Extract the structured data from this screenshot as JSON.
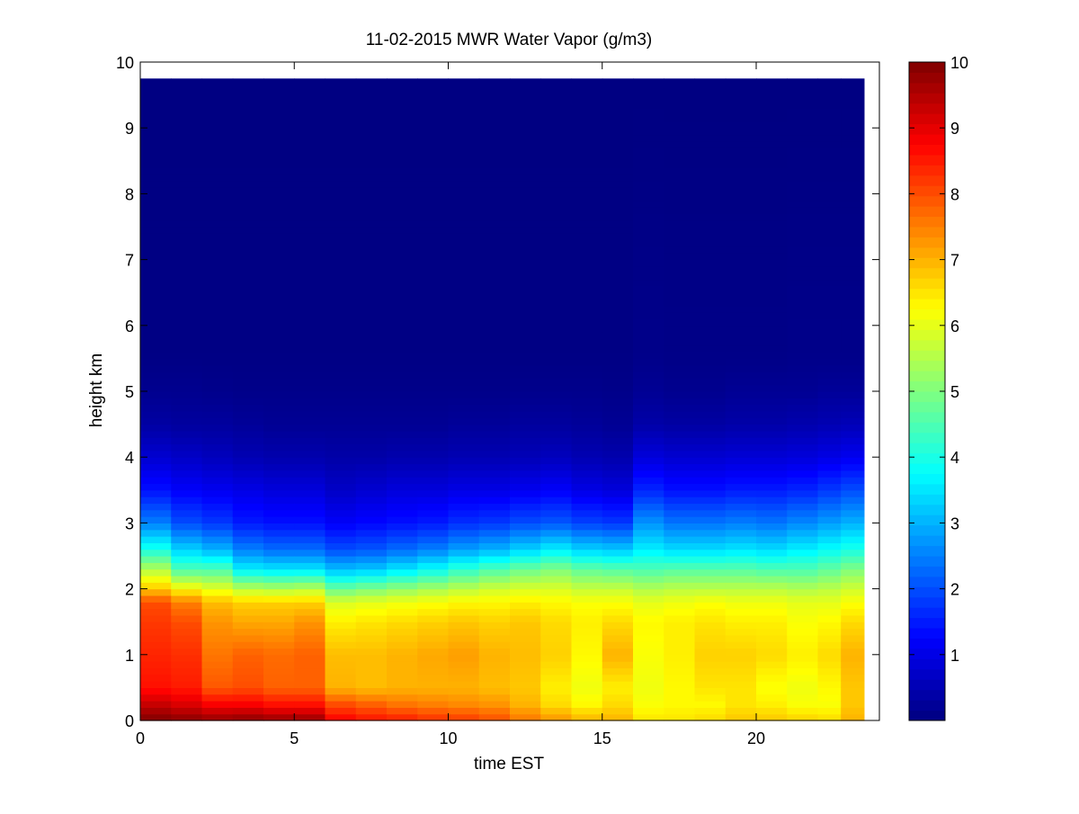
{
  "chart_data": {
    "type": "heatmap",
    "title": "11-02-2015 MWR Water Vapor (g/m3)",
    "xlabel": "time EST",
    "ylabel": "height km",
    "xlim": [
      0,
      24
    ],
    "ylim": [
      0,
      10
    ],
    "x_ticks": [
      0,
      5,
      10,
      15,
      20
    ],
    "y_ticks": [
      0,
      1,
      2,
      3,
      4,
      5,
      6,
      7,
      8,
      9,
      10
    ],
    "x_tick_labels": [
      "0",
      "5",
      "10",
      "15",
      "20"
    ],
    "y_tick_labels": [
      "0",
      "1",
      "2",
      "3",
      "4",
      "5",
      "6",
      "7",
      "8",
      "9",
      "10"
    ],
    "colormap": "jet",
    "colorbar": {
      "range": [
        0,
        10
      ],
      "ticks": [
        1,
        2,
        3,
        4,
        5,
        6,
        7,
        8,
        9,
        10
      ],
      "tick_labels": [
        "1",
        "2",
        "3",
        "4",
        "5",
        "6",
        "7",
        "8",
        "9",
        "10"
      ]
    },
    "grid": false,
    "data_extent": {
      "x": [
        0,
        23.5
      ],
      "y": [
        0,
        9.75
      ]
    },
    "time_hours": [
      0.5,
      1.5,
      2.5,
      3.5,
      4.5,
      5.5,
      6.5,
      7.5,
      8.5,
      9.5,
      10.5,
      11.5,
      12.5,
      13.5,
      14.5,
      15.5,
      16.5,
      17.5,
      18.5,
      19.5,
      20.5,
      21.5,
      22.5,
      23.0
    ],
    "profile_heights_km": [
      0,
      0.25,
      0.5,
      1.0,
      1.5,
      1.8,
      2.0,
      2.3,
      2.6,
      3.0,
      3.5,
      4.0,
      4.5,
      5.0,
      5.5,
      9.75
    ],
    "profiles": [
      [
        10,
        9.3,
        8.6,
        8.4,
        8.2,
        8.0,
        6.8,
        5.5,
        4.0,
        2.5,
        1.4,
        0.8,
        0.35,
        0.15,
        0.05,
        0.02
      ],
      [
        9.9,
        9.1,
        8.5,
        8.3,
        8.0,
        7.5,
        6.3,
        4.5,
        3.3,
        2.0,
        1.2,
        0.7,
        0.3,
        0.15,
        0.05,
        0.02
      ],
      [
        9.8,
        8.8,
        7.9,
        7.6,
        7.3,
        6.9,
        6.0,
        4.5,
        3.0,
        1.8,
        1.1,
        0.6,
        0.3,
        0.12,
        0.05,
        0.02
      ],
      [
        9.9,
        8.8,
        8.0,
        7.8,
        7.1,
        6.7,
        5.6,
        3.6,
        2.5,
        1.5,
        1.0,
        0.5,
        0.25,
        0.1,
        0.05,
        0.02
      ],
      [
        9.8,
        8.6,
        7.8,
        7.7,
        7.1,
        6.7,
        5.5,
        3.5,
        2.3,
        1.4,
        0.9,
        0.45,
        0.2,
        0.1,
        0.05,
        0.02
      ],
      [
        9.8,
        8.6,
        7.8,
        7.8,
        7.3,
        6.7,
        5.6,
        3.5,
        2.3,
        1.4,
        0.9,
        0.45,
        0.2,
        0.1,
        0.05,
        0.02
      ],
      [
        8.8,
        8.0,
        7.0,
        6.9,
        6.4,
        5.9,
        4.8,
        3.1,
        2.0,
        1.2,
        0.7,
        0.4,
        0.2,
        0.1,
        0.05,
        0.02
      ],
      [
        8.6,
        7.8,
        6.9,
        6.9,
        6.5,
        6.0,
        5.0,
        3.2,
        2.1,
        1.3,
        0.8,
        0.4,
        0.2,
        0.1,
        0.05,
        0.02
      ],
      [
        8.5,
        7.6,
        7.0,
        7.0,
        6.6,
        6.1,
        5.2,
        3.5,
        2.3,
        1.4,
        0.9,
        0.45,
        0.2,
        0.1,
        0.05,
        0.02
      ],
      [
        8.3,
        7.5,
        7.0,
        7.1,
        6.7,
        6.2,
        5.4,
        3.8,
        2.5,
        1.5,
        0.9,
        0.45,
        0.2,
        0.1,
        0.05,
        0.02
      ],
      [
        8.2,
        7.4,
        7.0,
        7.2,
        6.8,
        6.3,
        5.6,
        4.2,
        2.8,
        1.7,
        1.0,
        0.5,
        0.25,
        0.1,
        0.05,
        0.02
      ],
      [
        8.0,
        7.3,
        6.9,
        7.0,
        6.7,
        6.3,
        5.8,
        4.5,
        3.0,
        1.8,
        1.0,
        0.5,
        0.25,
        0.1,
        0.05,
        0.02
      ],
      [
        7.6,
        7.0,
        6.8,
        6.9,
        6.8,
        6.4,
        5.9,
        4.8,
        3.3,
        2.0,
        1.1,
        0.55,
        0.3,
        0.12,
        0.05,
        0.02
      ],
      [
        7.3,
        6.6,
        6.4,
        6.7,
        6.6,
        6.3,
        5.9,
        5.0,
        3.6,
        2.1,
        1.2,
        0.6,
        0.3,
        0.12,
        0.05,
        0.02
      ],
      [
        7.0,
        6.3,
        6.1,
        6.3,
        6.4,
        6.2,
        5.7,
        4.7,
        3.3,
        1.9,
        1.0,
        0.5,
        0.25,
        0.12,
        0.05,
        0.02
      ],
      [
        7.0,
        6.6,
        6.4,
        7.0,
        6.6,
        6.2,
        5.7,
        4.6,
        3.2,
        1.8,
        0.9,
        0.45,
        0.2,
        0.1,
        0.05,
        0.02
      ],
      [
        6.5,
        6.2,
        6.1,
        6.2,
        6.3,
        6.0,
        5.5,
        4.5,
        3.6,
        2.7,
        1.6,
        0.9,
        0.4,
        0.2,
        0.1,
        0.02
      ],
      [
        6.5,
        6.3,
        6.3,
        6.4,
        6.4,
        6.1,
        5.6,
        4.6,
        3.4,
        2.4,
        1.4,
        0.8,
        0.35,
        0.15,
        0.08,
        0.02
      ],
      [
        6.6,
        6.3,
        6.5,
        6.7,
        6.5,
        6.2,
        5.6,
        4.6,
        3.4,
        2.4,
        1.4,
        0.8,
        0.35,
        0.15,
        0.08,
        0.02
      ],
      [
        6.8,
        6.5,
        6.5,
        6.7,
        6.4,
        6.1,
        5.6,
        4.6,
        3.5,
        2.5,
        1.5,
        0.85,
        0.4,
        0.2,
        0.08,
        0.02
      ],
      [
        6.8,
        6.4,
        6.2,
        6.6,
        6.4,
        6.1,
        5.6,
        4.5,
        3.4,
        2.4,
        1.5,
        0.85,
        0.4,
        0.2,
        0.08,
        0.02
      ],
      [
        6.7,
        6.2,
        6.1,
        6.4,
        6.2,
        6.0,
        5.5,
        4.5,
        3.6,
        2.6,
        1.6,
        0.9,
        0.45,
        0.2,
        0.1,
        0.02
      ],
      [
        6.6,
        6.2,
        6.3,
        6.6,
        6.3,
        6.0,
        5.6,
        4.7,
        3.8,
        2.8,
        1.8,
        1.0,
        0.5,
        0.25,
        0.1,
        0.02
      ],
      [
        7.0,
        6.8,
        6.8,
        7.0,
        6.6,
        6.2,
        5.8,
        5.0,
        4.0,
        3.0,
        2.0,
        1.1,
        0.55,
        0.25,
        0.1,
        0.02
      ]
    ]
  }
}
